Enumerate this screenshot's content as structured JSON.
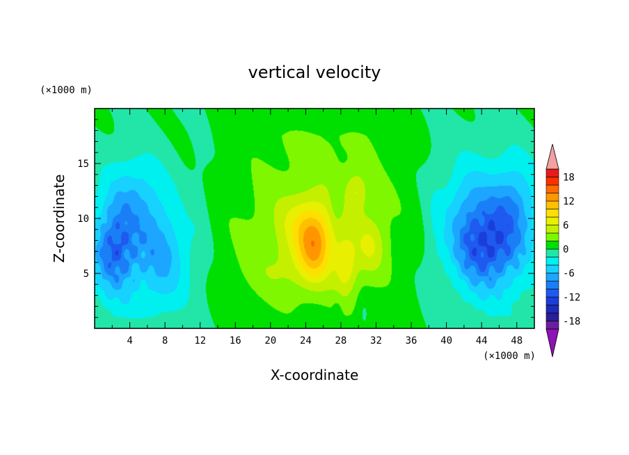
{
  "chart_data": {
    "type": "heatmap",
    "title": "vertical velocity",
    "xlabel": "X-coordinate",
    "ylabel": "Z-coordinate",
    "x_unit": "(×1000 m)",
    "y_unit": "(×1000 m)",
    "xlim": [
      0,
      50
    ],
    "ylim": [
      0,
      20
    ],
    "x_ticks": [
      4,
      8,
      12,
      16,
      20,
      24,
      28,
      32,
      36,
      40,
      44,
      48
    ],
    "y_ticks": [
      5,
      10,
      15
    ],
    "colorbar": {
      "levels": [
        -20,
        -18,
        -16,
        -14,
        -12,
        -10,
        -8,
        -6,
        -4,
        -2,
        0,
        2,
        4,
        6,
        8,
        10,
        12,
        14,
        16,
        18,
        20
      ],
      "tick_labels": [
        "18",
        "12",
        "6",
        "0",
        "-6",
        "-12",
        "-18"
      ],
      "colors": [
        "#6a1fa0",
        "#2a1f96",
        "#1e2ab8",
        "#1c3ed8",
        "#1f5af0",
        "#1a7ff6",
        "#1ca6ff",
        "#17d1ff",
        "#00f0f0",
        "#21e6a8",
        "#00e000",
        "#7ef700",
        "#c4f000",
        "#e9ef00",
        "#ffdf00",
        "#ffc000",
        "#ff9600",
        "#ff6b00",
        "#ff3000",
        "#e81a1a"
      ],
      "extend_low": "#8e12b4",
      "extend_high": "#f2a0a0"
    },
    "field_features": [
      {
        "kind": "updraft",
        "x": 25,
        "z": 7.5,
        "peak": 12
      },
      {
        "kind": "updraft",
        "x": 29,
        "z": 5,
        "peak": 8
      },
      {
        "kind": "updraft",
        "x": 30,
        "z": 12,
        "peak": 4
      },
      {
        "kind": "downdraft",
        "x": 2.5,
        "z": 7,
        "peak": -12
      },
      {
        "kind": "downdraft",
        "x": 45,
        "z": 7,
        "peak": -12
      }
    ]
  }
}
